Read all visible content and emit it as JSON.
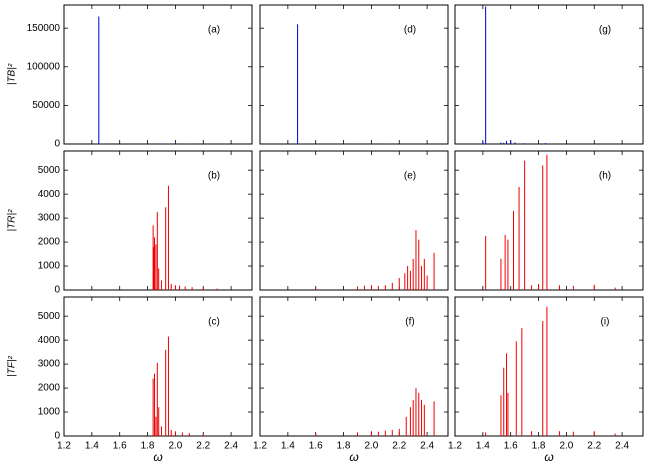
{
  "chart_data": [
    {
      "type": "bar",
      "panel_label": "(a)",
      "ylabel": "|TB|²",
      "color": "#0000cc",
      "x": [
        1.45,
        1.9,
        2.0,
        2.1,
        2.2
      ],
      "values": [
        165000,
        500,
        800,
        600,
        400
      ],
      "xlim": [
        1.2,
        2.55
      ],
      "ylim": [
        0,
        180000
      ],
      "xticks": [
        1.2,
        1.4,
        1.6,
        1.8,
        {
          "value": 2,
          "label": "2.0"
        },
        2.2,
        2.4
      ],
      "yticks": [
        0,
        50000,
        100000,
        150000
      ]
    },
    {
      "type": "bar",
      "panel_label": "(d)",
      "color": "#0000cc",
      "x": [
        1.47,
        1.9,
        2.0,
        2.1,
        2.3
      ],
      "values": [
        155000,
        400,
        600,
        500,
        700
      ],
      "xlim": [
        1.2,
        2.55
      ],
      "ylim": [
        0,
        180000
      ],
      "xticks": [
        1.2,
        1.4,
        1.6,
        1.8,
        {
          "value": 2,
          "label": "2.0"
        },
        2.2,
        2.4
      ],
      "yticks": [
        0,
        50000,
        100000,
        150000
      ]
    },
    {
      "type": "bar",
      "panel_label": "(g)",
      "color": "#0000cc",
      "x": [
        1.4,
        1.42,
        1.53,
        1.55,
        1.57,
        1.6,
        1.63,
        1.7,
        1.85
      ],
      "values": [
        3000,
        178000,
        2000,
        1500,
        4000,
        5000,
        2000,
        1000,
        1200
      ],
      "xlim": [
        1.2,
        2.55
      ],
      "ylim": [
        0,
        180000
      ],
      "xticks": [
        1.2,
        1.4,
        1.6,
        1.8,
        {
          "value": 2,
          "label": "2.0"
        },
        2.2,
        2.4
      ],
      "yticks": [
        0,
        50000,
        100000,
        150000
      ]
    },
    {
      "type": "bar",
      "panel_label": "(b)",
      "ylabel": "|TR|²",
      "color": "#ee0000",
      "x": [
        1.84,
        1.845,
        1.85,
        1.86,
        1.87,
        1.88,
        1.9,
        1.93,
        1.95,
        1.97,
        2.0,
        2.03,
        2.07,
        2.12,
        2.2,
        2.3
      ],
      "values": [
        2700,
        1800,
        2200,
        1900,
        3250,
        900,
        400,
        3450,
        4350,
        250,
        200,
        180,
        150,
        120,
        100,
        60
      ],
      "xlim": [
        1.2,
        2.55
      ],
      "ylim": [
        0,
        5800
      ],
      "xticks": [
        1.2,
        1.4,
        1.6,
        1.8,
        {
          "value": 2,
          "label": "2.0"
        },
        2.2,
        2.4
      ],
      "yticks": [
        0,
        1000,
        2000,
        3000,
        4000,
        5000
      ]
    },
    {
      "type": "bar",
      "panel_label": "(e)",
      "color": "#ee0000",
      "x": [
        1.6,
        1.9,
        1.95,
        2.0,
        2.05,
        2.1,
        2.15,
        2.2,
        2.24,
        2.26,
        2.28,
        2.3,
        2.32,
        2.34,
        2.36,
        2.38,
        2.4,
        2.45
      ],
      "values": [
        100,
        150,
        180,
        200,
        170,
        200,
        300,
        500,
        700,
        1000,
        800,
        1300,
        2500,
        2100,
        1000,
        1300,
        600,
        1550
      ],
      "xlim": [
        1.2,
        2.55
      ],
      "ylim": [
        0,
        5800
      ],
      "xticks": [
        1.2,
        1.4,
        1.6,
        1.8,
        {
          "value": 2,
          "label": "2.0"
        },
        2.2,
        2.4
      ],
      "yticks": [
        0,
        1000,
        2000,
        3000,
        4000,
        5000
      ]
    },
    {
      "type": "bar",
      "panel_label": "(h)",
      "color": "#ee0000",
      "x": [
        1.42,
        1.53,
        1.56,
        1.58,
        1.62,
        1.66,
        1.7,
        1.75,
        1.8,
        1.83,
        1.86,
        1.95,
        2.05,
        2.2,
        2.35
      ],
      "values": [
        2250,
        1300,
        2300,
        2100,
        3300,
        4300,
        5400,
        200,
        250,
        5200,
        5650,
        200,
        180,
        220,
        100
      ],
      "xlim": [
        1.2,
        2.55
      ],
      "ylim": [
        0,
        5800
      ],
      "xticks": [
        1.2,
        1.4,
        1.6,
        1.8,
        {
          "value": 2,
          "label": "2.0"
        },
        2.2,
        2.4
      ],
      "yticks": [
        0,
        1000,
        2000,
        3000,
        4000,
        5000
      ]
    },
    {
      "type": "bar",
      "panel_label": "(c)",
      "ylabel": "|TF|²",
      "xlabel": "ω",
      "color": "#ee0000",
      "x": [
        1.84,
        1.85,
        1.86,
        1.87,
        1.88,
        1.9,
        1.93,
        1.95,
        1.97,
        2.0,
        2.05,
        2.1,
        2.2
      ],
      "values": [
        2400,
        2600,
        800,
        3050,
        1200,
        400,
        3600,
        4150,
        250,
        200,
        150,
        120,
        80
      ],
      "xlim": [
        1.2,
        2.55
      ],
      "ylim": [
        0,
        5800
      ],
      "xticks": [
        1.2,
        1.4,
        1.6,
        1.8,
        {
          "value": 2,
          "label": "2.0"
        },
        2.2,
        2.4
      ],
      "yticks": [
        0,
        1000,
        2000,
        3000,
        4000,
        5000
      ]
    },
    {
      "type": "bar",
      "panel_label": "(f)",
      "xlabel": "ω",
      "color": "#ee0000",
      "x": [
        1.6,
        1.9,
        2.0,
        2.05,
        2.1,
        2.15,
        2.2,
        2.25,
        2.28,
        2.3,
        2.32,
        2.34,
        2.36,
        2.38,
        2.45
      ],
      "values": [
        100,
        150,
        200,
        180,
        220,
        250,
        300,
        800,
        1200,
        1500,
        2000,
        1800,
        1500,
        1300,
        1450
      ],
      "xlim": [
        1.2,
        2.55
      ],
      "ylim": [
        0,
        5800
      ],
      "xticks": [
        1.2,
        1.4,
        1.6,
        1.8,
        {
          "value": 2,
          "label": "2.0"
        },
        2.2,
        2.4
      ],
      "yticks": [
        0,
        1000,
        2000,
        3000,
        4000,
        5000
      ]
    },
    {
      "type": "bar",
      "panel_label": "(i)",
      "xlabel": "ω",
      "color": "#ee0000",
      "x": [
        1.42,
        1.53,
        1.55,
        1.57,
        1.58,
        1.64,
        1.68,
        1.75,
        1.83,
        1.86,
        1.95,
        2.05,
        2.2,
        2.35
      ],
      "values": [
        150,
        1700,
        2850,
        3450,
        1800,
        3950,
        4500,
        200,
        4800,
        5400,
        200,
        180,
        200,
        100
      ],
      "xlim": [
        1.2,
        2.55
      ],
      "ylim": [
        0,
        5800
      ],
      "xticks": [
        1.2,
        1.4,
        1.6,
        1.8,
        {
          "value": 2,
          "label": "2.0"
        },
        2.2,
        2.4
      ],
      "yticks": [
        0,
        1000,
        2000,
        3000,
        4000,
        5000
      ]
    }
  ]
}
